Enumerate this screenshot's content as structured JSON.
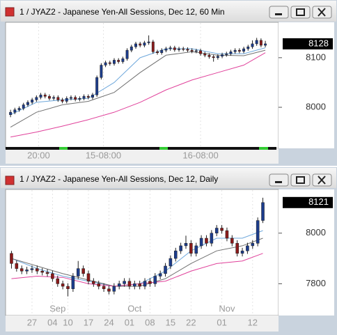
{
  "chart_data": [
    {
      "type": "candlestick",
      "title": "1 / JYAZ2 - Japanese Yen-All Sessions, Dec 12, 60 Min",
      "ylim": [
        7920,
        8170
      ],
      "yticks": [
        8000,
        8100
      ],
      "last": 8128,
      "xticks": [
        {
          "value": 6.5,
          "label": "20:00"
        },
        {
          "value": 21.5,
          "label": "15-08:00"
        },
        {
          "value": 44,
          "label": "16-08:00"
        }
      ],
      "candles": [
        [
          7985,
          7995,
          7980,
          7990
        ],
        [
          7990,
          7999,
          7986,
          7995
        ],
        [
          7995,
          8002,
          7991,
          7998
        ],
        [
          7998,
          8009,
          7994,
          8005
        ],
        [
          8005,
          8014,
          8001,
          8010
        ],
        [
          8010,
          8019,
          8006,
          8015
        ],
        [
          8015,
          8024,
          8011,
          8020
        ],
        [
          8020,
          8029,
          8016,
          8025
        ],
        [
          8025,
          8029,
          8018,
          8022
        ],
        [
          8022,
          8026,
          8014,
          8018
        ],
        [
          8018,
          8024,
          8014,
          8020
        ],
        [
          8020,
          8024,
          8011,
          8015
        ],
        [
          8015,
          8019,
          8008,
          8012
        ],
        [
          8012,
          8022,
          8008,
          8018
        ],
        [
          8018,
          8024,
          8014,
          8020
        ],
        [
          8020,
          8024,
          8012,
          8016
        ],
        [
          8016,
          8022,
          8012,
          8018
        ],
        [
          8018,
          8026,
          8014,
          8022
        ],
        [
          8022,
          8026,
          8016,
          8020
        ],
        [
          8020,
          8029,
          8016,
          8025
        ],
        [
          8025,
          8064,
          8021,
          8060
        ],
        [
          8060,
          8089,
          8056,
          8085
        ],
        [
          8085,
          8094,
          8081,
          8090
        ],
        [
          8090,
          8094,
          8084,
          8088
        ],
        [
          8088,
          8099,
          8084,
          8095
        ],
        [
          8095,
          8099,
          8088,
          8092
        ],
        [
          8092,
          8102,
          8088,
          8098
        ],
        [
          8098,
          8119,
          8094,
          8115
        ],
        [
          8115,
          8126,
          8111,
          8122
        ],
        [
          8122,
          8132,
          8118,
          8128
        ],
        [
          8128,
          8132,
          8121,
          8125
        ],
        [
          8125,
          8134,
          8121,
          8130
        ],
        [
          8130,
          8145,
          8126,
          8132
        ],
        [
          8132,
          8136,
          8108,
          8112
        ],
        [
          8112,
          8116,
          8106,
          8110
        ],
        [
          8110,
          8119,
          8106,
          8115
        ],
        [
          8115,
          8122,
          8111,
          8118
        ],
        [
          8118,
          8124,
          8114,
          8120
        ],
        [
          8120,
          8124,
          8112,
          8116
        ],
        [
          8116,
          8122,
          8112,
          8118
        ],
        [
          8118,
          8122,
          8113,
          8117
        ],
        [
          8117,
          8121,
          8111,
          8115
        ],
        [
          8115,
          8119,
          8109,
          8113
        ],
        [
          8113,
          8118,
          8109,
          8114
        ],
        [
          8114,
          8118,
          8104,
          8108
        ],
        [
          8108,
          8112,
          8101,
          8105
        ],
        [
          8105,
          8109,
          8098,
          8102
        ],
        [
          8102,
          8106,
          8092,
          8100
        ],
        [
          8100,
          8107,
          8096,
          8103
        ],
        [
          8103,
          8110,
          8099,
          8106
        ],
        [
          8106,
          8112,
          8102,
          8108
        ],
        [
          8108,
          8116,
          8104,
          8112
        ],
        [
          8112,
          8119,
          8108,
          8115
        ],
        [
          8115,
          8119,
          8109,
          8113
        ],
        [
          8113,
          8122,
          8109,
          8118
        ],
        [
          8118,
          8126,
          8114,
          8122
        ],
        [
          8122,
          8135,
          8118,
          8128
        ],
        [
          8128,
          8140,
          8124,
          8135
        ],
        [
          8135,
          8139,
          8121,
          8125
        ],
        [
          8125,
          8134,
          8121,
          8128
        ]
      ],
      "up_color": "#1c3c8c",
      "down_color": "#8b1a1a",
      "series": [
        {
          "color": "#6fa8dc",
          "x": [
            0,
            6,
            12,
            18,
            24,
            30,
            36,
            42,
            48,
            54,
            59
          ],
          "values": [
            7985,
            8010,
            8015,
            8018,
            8050,
            8100,
            8118,
            8118,
            8108,
            8108,
            8120
          ]
        },
        {
          "color": "#707070",
          "x": [
            0,
            6,
            12,
            18,
            24,
            30,
            36,
            42,
            48,
            54,
            59
          ],
          "values": [
            7960,
            7990,
            8005,
            8012,
            8030,
            8070,
            8105,
            8112,
            8105,
            8104,
            8115
          ]
        },
        {
          "color": "#e0409a",
          "x": [
            0,
            6,
            12,
            18,
            24,
            30,
            36,
            42,
            48,
            54,
            59
          ],
          "values": [
            7940,
            7950,
            7962,
            7975,
            7990,
            8010,
            8035,
            8055,
            8070,
            8085,
            8110
          ]
        }
      ]
    },
    {
      "type": "candlestick",
      "title": "1 / JYAZ2 - Japanese Yen-All Sessions, Dec 12, Daily",
      "ylim": [
        7680,
        8170
      ],
      "yticks": [
        7800,
        8000
      ],
      "last": 8121,
      "xticks": [
        {
          "value": 4,
          "label": "27"
        },
        {
          "value": 8,
          "label": "04"
        },
        {
          "value": 11,
          "label": "10"
        },
        {
          "value": 15,
          "label": "17"
        },
        {
          "value": 19,
          "label": "24"
        },
        {
          "value": 23,
          "label": "01"
        },
        {
          "value": 27,
          "label": "08"
        },
        {
          "value": 31,
          "label": "15"
        },
        {
          "value": 35,
          "label": "22"
        },
        {
          "value": 41,
          "label": "01"
        },
        {
          "value": 47,
          "label": "12"
        }
      ],
      "months": [
        {
          "value": 9,
          "label": "Sep"
        },
        {
          "value": 24,
          "label": "Oct"
        },
        {
          "value": 42,
          "label": "Nov"
        }
      ],
      "candles": [
        [
          7920,
          7930,
          7860,
          7880
        ],
        [
          7880,
          7892,
          7848,
          7860
        ],
        [
          7860,
          7872,
          7838,
          7850
        ],
        [
          7850,
          7867,
          7838,
          7855
        ],
        [
          7855,
          7872,
          7843,
          7860
        ],
        [
          7860,
          7872,
          7838,
          7850
        ],
        [
          7850,
          7862,
          7833,
          7845
        ],
        [
          7845,
          7857,
          7828,
          7840
        ],
        [
          7840,
          7852,
          7808,
          7820
        ],
        [
          7820,
          7832,
          7788,
          7800
        ],
        [
          7800,
          7812,
          7778,
          7790
        ],
        [
          7790,
          7802,
          7750,
          7780
        ],
        [
          7780,
          7842,
          7768,
          7830
        ],
        [
          7830,
          7890,
          7818,
          7860
        ],
        [
          7860,
          7872,
          7828,
          7840
        ],
        [
          7840,
          7852,
          7798,
          7810
        ],
        [
          7810,
          7822,
          7788,
          7800
        ],
        [
          7800,
          7812,
          7778,
          7790
        ],
        [
          7790,
          7802,
          7768,
          7780
        ],
        [
          7780,
          7792,
          7758,
          7770
        ],
        [
          7770,
          7802,
          7758,
          7790
        ],
        [
          7790,
          7812,
          7778,
          7800
        ],
        [
          7800,
          7822,
          7788,
          7810
        ],
        [
          7810,
          7822,
          7778,
          7790
        ],
        [
          7790,
          7812,
          7778,
          7800
        ],
        [
          7800,
          7812,
          7778,
          7790
        ],
        [
          7790,
          7822,
          7778,
          7810
        ],
        [
          7810,
          7822,
          7788,
          7800
        ],
        [
          7800,
          7842,
          7788,
          7830
        ],
        [
          7830,
          7852,
          7818,
          7840
        ],
        [
          7840,
          7882,
          7828,
          7870
        ],
        [
          7870,
          7912,
          7858,
          7900
        ],
        [
          7900,
          7942,
          7888,
          7930
        ],
        [
          7930,
          7962,
          7918,
          7950
        ],
        [
          7950,
          7990,
          7938,
          7960
        ],
        [
          7960,
          7972,
          7908,
          7920
        ],
        [
          7920,
          7962,
          7908,
          7950
        ],
        [
          7950,
          7992,
          7938,
          7980
        ],
        [
          7980,
          7992,
          7948,
          7960
        ],
        [
          7960,
          8012,
          7948,
          8000
        ],
        [
          8000,
          8032,
          7988,
          8020
        ],
        [
          8020,
          8032,
          7998,
          8010
        ],
        [
          8010,
          8022,
          7968,
          7980
        ],
        [
          7980,
          7992,
          7948,
          7960
        ],
        [
          7960,
          7972,
          7908,
          7920
        ],
        [
          7920,
          7942,
          7908,
          7930
        ],
        [
          7930,
          7962,
          7918,
          7950
        ],
        [
          7950,
          7972,
          7938,
          7960
        ],
        [
          7960,
          8062,
          7948,
          8050
        ],
        [
          8050,
          8140,
          8040,
          8121
        ]
      ],
      "up_color": "#1c3c8c",
      "down_color": "#8b1a1a",
      "series": [
        {
          "color": "#6fa8dc",
          "x": [
            0,
            5,
            10,
            15,
            20,
            25,
            30,
            35,
            40,
            45,
            49
          ],
          "values": [
            7900,
            7860,
            7830,
            7810,
            7790,
            7800,
            7850,
            7930,
            7980,
            7980,
            8010
          ]
        },
        {
          "color": "#707070",
          "x": [
            0,
            5,
            10,
            15,
            20,
            25,
            30,
            35,
            40,
            45,
            49
          ],
          "values": [
            7900,
            7870,
            7840,
            7815,
            7790,
            7790,
            7820,
            7880,
            7930,
            7950,
            7980
          ]
        },
        {
          "color": "#e0409a",
          "x": [
            0,
            5,
            10,
            15,
            20,
            25,
            30,
            35,
            40,
            45,
            49
          ],
          "values": [
            7820,
            7830,
            7825,
            7800,
            7790,
            7800,
            7810,
            7850,
            7880,
            7890,
            7920
          ]
        }
      ]
    }
  ]
}
